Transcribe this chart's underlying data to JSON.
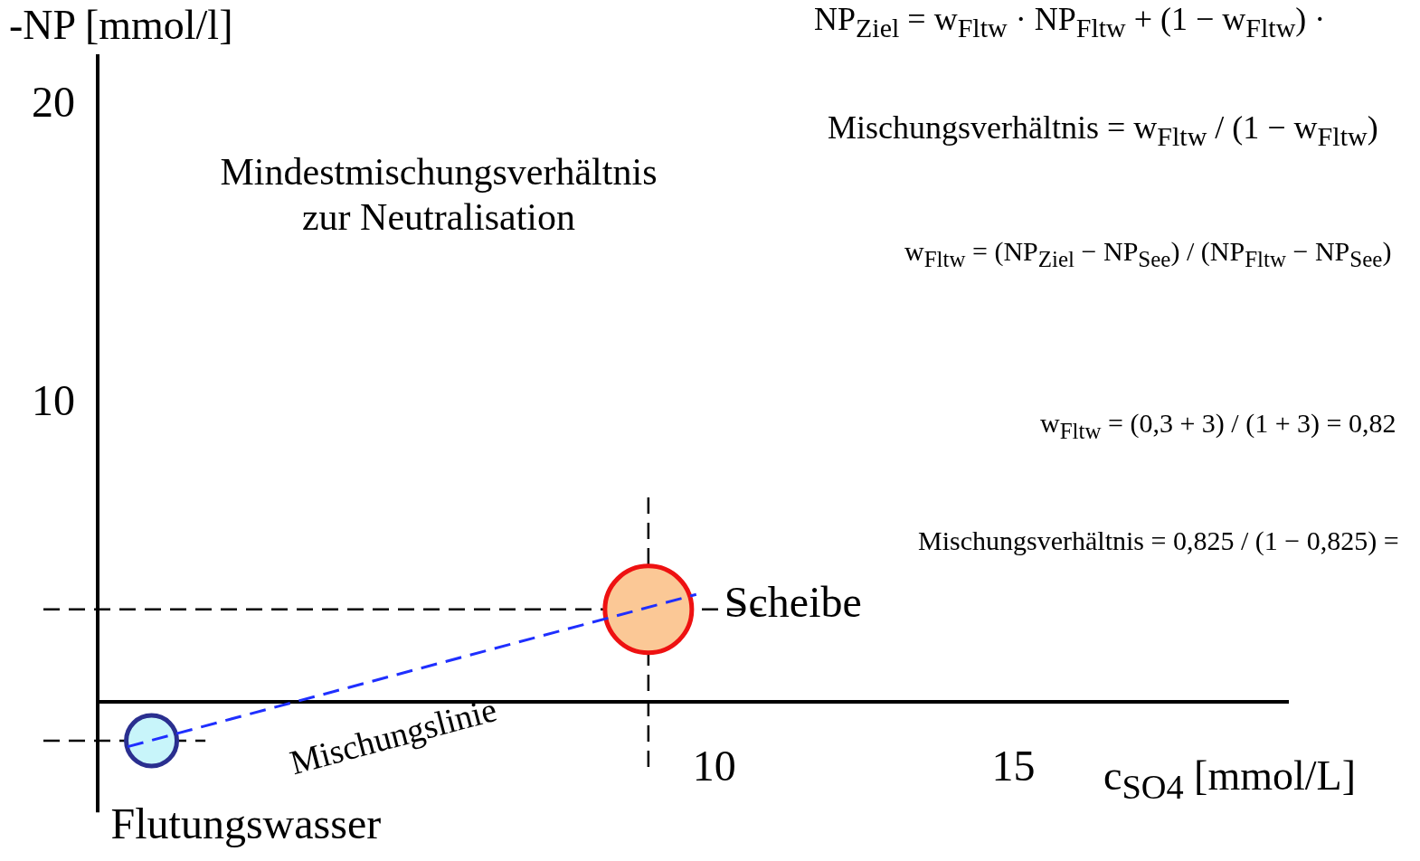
{
  "chart_data": {
    "type": "scatter",
    "xlabel": "c$_{SO4}$ [mmol/L]",
    "ylabel": "-NP [mmol/l]",
    "annotations": [
      "Mindestmischungsverhältnis\nzur Neutralisation",
      "NP$_{Ziel}$ = w$_{Fltw}$ · NP$_{Fltw}$ + (1 − w$_{Fltw}$) ·",
      "Mischungsverhältnis = w$_{Fltw}$ / (1 − w$_{Fltw}$)",
      "w$_{Fltw}$ = (NP$_{Ziel}$ − NP$_{See}$) / (NP$_{Fltw}$ − NP$_{See}$)",
      "w$_{Fltw}$ = (0,3 + 3) / (1 + 3) = 0,82",
      "Mischungsverhältnis = 0,825 / (1 − 0,825) ="
    ],
    "xlim": [
      -0.3,
      19.6
    ],
    "ylim": [
      -3.7,
      21.7
    ],
    "xticks": [
      10,
      15
    ],
    "yticks": [
      10,
      20
    ],
    "grid": false,
    "legend": false,
    "ref_lines": [
      {
        "axis": "y",
        "value": 3.1
      },
      {
        "axis": "x",
        "value": 8.9
      },
      {
        "axis": "y",
        "value": -1.3
      }
    ],
    "series": [
      {
        "name": "Mischungslinie",
        "type": "line",
        "line_style": "dashed",
        "color": "#1f2fff",
        "x": [
          0.2,
          9.7
        ],
        "values": [
          -1.5,
          3.6
        ]
      },
      {
        "name": "Scheibe",
        "color": "#fbc896",
        "x": [
          8.9
        ],
        "values": [
          3.1
        ]
      },
      {
        "name": "Flutungswasser",
        "color": "#c8f5fa",
        "x": [
          0.6
        ],
        "values": [
          -1.3
        ]
      }
    ]
  }
}
